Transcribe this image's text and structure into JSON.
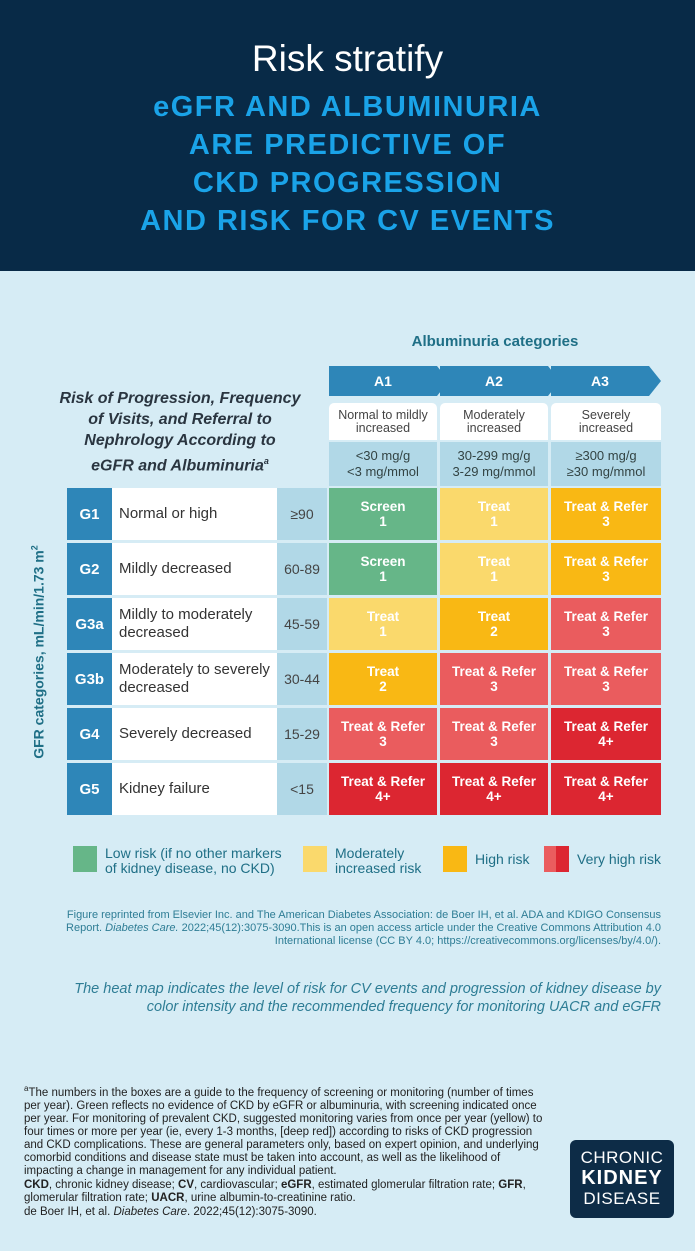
{
  "header": {
    "title": "Risk stratify",
    "subtitle_lines": [
      "eGFR AND ALBUMINURIA",
      "ARE PREDICTIVE OF",
      "CKD PROGRESSION",
      "AND RISK FOR CV EVENTS"
    ]
  },
  "chart": {
    "albuminuria_title": "Albuminuria categories",
    "risk_lines": [
      "Risk of Progression, Frequency",
      "of Visits, and Referral to",
      "Nephrology According to",
      "eGFR and Albuminuria"
    ],
    "risk_superscript": "a",
    "gfr_axis_label": "GFR categories, mL/min/1.73 m",
    "gfr_axis_sup": "2",
    "columns": [
      {
        "code": "A1",
        "desc": [
          "Normal to mildly",
          "increased"
        ],
        "range": [
          "<30 mg/g",
          "<3 mg/mmol"
        ]
      },
      {
        "code": "A2",
        "desc": [
          "Moderately",
          "increased"
        ],
        "range": [
          "30-299 mg/g",
          "3-29 mg/mmol"
        ]
      },
      {
        "code": "A3",
        "desc": [
          "Severely",
          "increased"
        ],
        "range": [
          "≥300 mg/g",
          "≥30 mg/mmol"
        ]
      }
    ],
    "rows": [
      {
        "code": "G1",
        "desc": "Normal or high",
        "range": "≥90",
        "cells": [
          {
            "action": "Screen",
            "level": "1",
            "risk": "low"
          },
          {
            "action": "Treat",
            "level": "1",
            "risk": "moderate"
          },
          {
            "action": "Treat & Refer",
            "level": "3",
            "risk": "high"
          }
        ]
      },
      {
        "code": "G2",
        "desc": "Mildly decreased",
        "range": "60-89",
        "cells": [
          {
            "action": "Screen",
            "level": "1",
            "risk": "low"
          },
          {
            "action": "Treat",
            "level": "1",
            "risk": "moderate"
          },
          {
            "action": "Treat & Refer",
            "level": "3",
            "risk": "high"
          }
        ]
      },
      {
        "code": "G3a",
        "desc": "Mildly to moderately decreased",
        "range": "45-59",
        "cells": [
          {
            "action": "Treat",
            "level": "1",
            "risk": "moderate"
          },
          {
            "action": "Treat",
            "level": "2",
            "risk": "high"
          },
          {
            "action": "Treat & Refer",
            "level": "3",
            "risk": "very-high-light"
          }
        ]
      },
      {
        "code": "G3b",
        "desc": "Moderately to severely decreased",
        "range": "30-44",
        "cells": [
          {
            "action": "Treat",
            "level": "2",
            "risk": "high"
          },
          {
            "action": "Treat & Refer",
            "level": "3",
            "risk": "very-high-light"
          },
          {
            "action": "Treat & Refer",
            "level": "3",
            "risk": "very-high-light"
          }
        ]
      },
      {
        "code": "G4",
        "desc": "Severely decreased",
        "range": "15-29",
        "cells": [
          {
            "action": "Treat & Refer",
            "level": "3",
            "risk": "very-high-light"
          },
          {
            "action": "Treat & Refer",
            "level": "3",
            "risk": "very-high-light"
          },
          {
            "action": "Treat & Refer",
            "level": "4+",
            "risk": "very-high"
          }
        ]
      },
      {
        "code": "G5",
        "desc": "Kidney failure",
        "range": "<15",
        "cells": [
          {
            "action": "Treat & Refer",
            "level": "4+",
            "risk": "very-high"
          },
          {
            "action": "Treat & Refer",
            "level": "4+",
            "risk": "very-high"
          },
          {
            "action": "Treat & Refer",
            "level": "4+",
            "risk": "very-high"
          }
        ]
      }
    ],
    "colors": {
      "low": "#66b688",
      "moderate": "#fad96c",
      "high": "#f9b814",
      "very-high-light": "#ea5c5e",
      "very-high": "#dc2631"
    }
  },
  "legend": {
    "low": [
      "Low risk (if no other markers",
      "of kidney disease, no CKD)"
    ],
    "moderate": [
      "Moderately",
      "increased risk"
    ],
    "high": "High risk",
    "very_high": "Very high risk"
  },
  "credit": {
    "line1": "Figure reprinted from Elsevier Inc. and The American Diabetes Association: de Boer IH, et al. ADA and KDIGO Consensus",
    "line2_pre": "Report. ",
    "line2_journal": "Diabetes Care.",
    "line2_post": " 2022;45(12):3075-3090.This is an open access article under the Creative Commons Attribution 4.0",
    "line3": "International license (CC BY 4.0; https://creativecommons.org/licenses/by/4.0/)."
  },
  "heat_note": "The heat map indicates the level of risk for CV events and progression of kidney disease by color intensity and the recommended frequency for monitoring UACR and eGFR",
  "footnote": {
    "sup": "a",
    "text": "The numbers in the boxes are a guide to the frequency of screening or monitoring (number of times per year). Green reflects no evidence of CKD by eGFR or albuminuria, with screening indicated once per year. For monitoring of prevalent CKD, suggested monitoring varies from once per year (yellow) to four times or more per year (ie, every 1-3 months, [deep red]) according to risks of CKD progression and CKD complications. These are general parameters only, based on expert opinion, and underlying comorbid conditions and disease state must be taken into account, as well as the likelihood of impacting a change in management for any individual patient.",
    "abbr": [
      {
        "term": "CKD",
        "def": ", chronic kidney disease; "
      },
      {
        "term": "CV",
        "def": ", cardiovascular; "
      },
      {
        "term": "eGFR",
        "def": ", estimated glomerular filtration rate; "
      },
      {
        "term": "GFR",
        "def": ", glomerular filtration rate; "
      },
      {
        "term": "UACR",
        "def": ", urine albumin-to-creatinine ratio."
      }
    ],
    "ref_pre": "de Boer IH, et al. ",
    "ref_journal": "Diabetes Care",
    "ref_post": ". 2022;45(12):3075-3090."
  },
  "logo": {
    "line1": "CHRONIC",
    "line2": "KIDNEY",
    "line3": "DISEASE"
  }
}
